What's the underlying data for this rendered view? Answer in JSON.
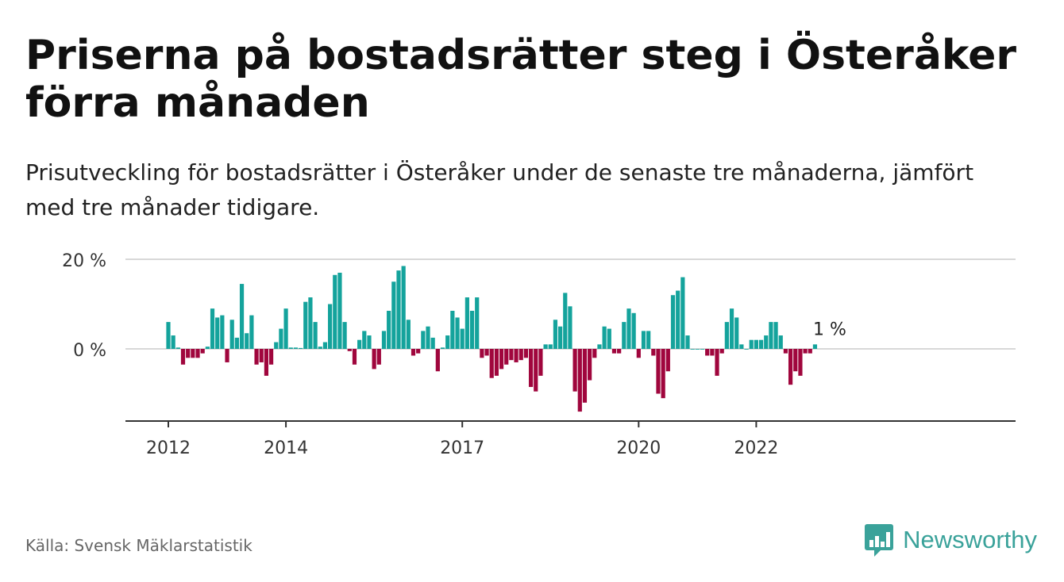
{
  "title": "Priserna på bostadsrätter steg i Österåker förra månaden",
  "subtitle": "Prisutveckling för bostadsrätter i Österåker under de senaste tre månaderna, jämfört med tre månader tidigare.",
  "source": "Källa: Svensk Mäklarstatistik",
  "brand": {
    "name": "Newsworthy",
    "icon": "newsworthy-logo-icon"
  },
  "colors": {
    "positive": "#14a39c",
    "negative": "#a0063d",
    "grid": "#d8d8d8",
    "axis": "#333333",
    "brand": "#3aa29a"
  },
  "chart_data": {
    "type": "bar",
    "title": "",
    "xlabel": "",
    "ylabel": "",
    "ylim": [
      -14,
      20
    ],
    "yticks": [
      {
        "value": 0,
        "label": "0 %"
      },
      {
        "value": 20,
        "label": "20 %"
      }
    ],
    "xticks": [
      {
        "month_index": 0,
        "label": "2012"
      },
      {
        "month_index": 24,
        "label": "2014"
      },
      {
        "month_index": 60,
        "label": "2017"
      },
      {
        "month_index": 96,
        "label": "2020"
      },
      {
        "month_index": 120,
        "label": "2022"
      }
    ],
    "start": "2012-01",
    "unit": "%",
    "values": [
      6,
      3,
      0.3,
      -3.5,
      -2,
      -2,
      -2,
      -1,
      0.5,
      9,
      7,
      7.5,
      -3,
      6.5,
      2.5,
      14.5,
      3.5,
      7.5,
      -3.5,
      -3,
      -6,
      -3.5,
      1.5,
      4.5,
      9,
      0.3,
      0.3,
      0.2,
      10.5,
      11.5,
      6,
      0.5,
      1.5,
      10,
      16.5,
      17,
      6,
      -0.5,
      -3.5,
      2,
      4,
      3,
      -4.5,
      -3.5,
      4,
      8.5,
      15,
      17.5,
      18.5,
      6.5,
      -1.5,
      -1,
      4,
      5,
      2.5,
      -5,
      0.3,
      3,
      8.5,
      7,
      4.5,
      11.5,
      8.5,
      11.5,
      -2,
      -1.5,
      -6.5,
      -6,
      -4.5,
      -3.5,
      -2.5,
      -3,
      -2.5,
      -2,
      -8.5,
      -9.5,
      -6,
      1,
      1,
      6.5,
      5,
      12.5,
      9.5,
      -9.5,
      -14,
      -12,
      -7,
      -2,
      1,
      5,
      4.5,
      -1,
      -1,
      6,
      9,
      8,
      -2,
      4,
      4,
      -1.5,
      -10,
      -11,
      -5,
      12,
      13,
      16,
      3,
      0,
      0,
      0,
      -1.5,
      -1.5,
      -6,
      -1,
      6,
      9,
      7,
      1,
      0,
      2,
      2,
      2,
      3,
      6,
      6,
      3,
      -1,
      -8,
      -5,
      -6,
      -1,
      -1,
      1
    ],
    "annotations": [
      {
        "text": "1 %",
        "month_index": 135,
        "value": 1
      }
    ]
  }
}
